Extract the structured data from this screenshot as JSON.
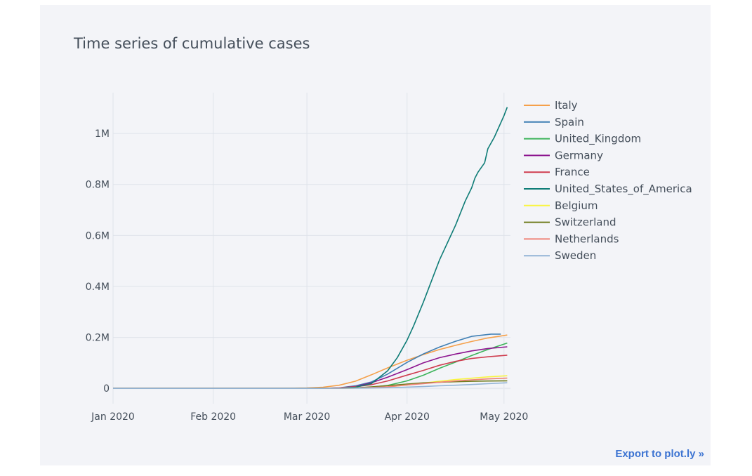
{
  "export_link_label": "Export to plot.ly »",
  "chart_data": {
    "type": "line",
    "title": "Time series of cumulative cases",
    "xlabel": "",
    "ylabel": "",
    "x_axis": {
      "type": "date",
      "range": [
        "2020-01-01",
        "2020-05-03"
      ],
      "ticks": [
        {
          "value": "2020-01-01",
          "label": "Jan 2020"
        },
        {
          "value": "2020-02-01",
          "label": "Feb 2020"
        },
        {
          "value": "2020-03-01",
          "label": "Mar 2020"
        },
        {
          "value": "2020-04-01",
          "label": "Apr 2020"
        },
        {
          "value": "2020-05-01",
          "label": "May 2020"
        }
      ]
    },
    "y_axis": {
      "range": [
        -60000,
        1160000
      ],
      "ticks": [
        {
          "value": 0,
          "label": "0"
        },
        {
          "value": 200000,
          "label": "0.2M"
        },
        {
          "value": 400000,
          "label": "0.4M"
        },
        {
          "value": 600000,
          "label": "0.6M"
        },
        {
          "value": 800000,
          "label": "0.8M"
        },
        {
          "value": 1000000,
          "label": "1M"
        }
      ]
    },
    "grid": true,
    "legend_position": "top-right",
    "series": [
      {
        "name": "Italy",
        "color": "#f5a04a",
        "points": [
          [
            "2020-01-01",
            0
          ],
          [
            "2020-02-20",
            0
          ],
          [
            "2020-03-01",
            1700
          ],
          [
            "2020-03-06",
            4600
          ],
          [
            "2020-03-11",
            12500
          ],
          [
            "2020-03-16",
            28000
          ],
          [
            "2020-03-21",
            53600
          ],
          [
            "2020-03-26",
            80500
          ],
          [
            "2020-04-01",
            110600
          ],
          [
            "2020-04-06",
            132500
          ],
          [
            "2020-04-11",
            152300
          ],
          [
            "2020-04-16",
            168900
          ],
          [
            "2020-04-21",
            183900
          ],
          [
            "2020-04-26",
            197700
          ],
          [
            "2020-05-02",
            209300
          ]
        ]
      },
      {
        "name": "Spain",
        "color": "#3f7fb4",
        "points": [
          [
            "2020-01-01",
            0
          ],
          [
            "2020-03-01",
            80
          ],
          [
            "2020-03-06",
            400
          ],
          [
            "2020-03-11",
            2300
          ],
          [
            "2020-03-16",
            9900
          ],
          [
            "2020-03-21",
            25500
          ],
          [
            "2020-03-26",
            56200
          ],
          [
            "2020-04-01",
            102000
          ],
          [
            "2020-04-06",
            135000
          ],
          [
            "2020-04-11",
            161900
          ],
          [
            "2020-04-16",
            184900
          ],
          [
            "2020-04-21",
            204200
          ],
          [
            "2020-04-27",
            213000
          ],
          [
            "2020-04-30",
            213000
          ]
        ]
      },
      {
        "name": "United_Kingdom",
        "color": "#3cb35a",
        "points": [
          [
            "2020-01-01",
            0
          ],
          [
            "2020-03-01",
            36
          ],
          [
            "2020-03-11",
            460
          ],
          [
            "2020-03-16",
            1500
          ],
          [
            "2020-03-21",
            5000
          ],
          [
            "2020-03-26",
            11700
          ],
          [
            "2020-04-01",
            29500
          ],
          [
            "2020-04-06",
            51600
          ],
          [
            "2020-04-11",
            78900
          ],
          [
            "2020-04-16",
            103000
          ],
          [
            "2020-04-21",
            129000
          ],
          [
            "2020-04-26",
            152800
          ],
          [
            "2020-05-02",
            178000
          ]
        ]
      },
      {
        "name": "Germany",
        "color": "#8d158f",
        "points": [
          [
            "2020-01-01",
            0
          ],
          [
            "2020-01-28",
            4
          ],
          [
            "2020-03-01",
            130
          ],
          [
            "2020-03-06",
            670
          ],
          [
            "2020-03-11",
            1900
          ],
          [
            "2020-03-16",
            7300
          ],
          [
            "2020-03-21",
            22400
          ],
          [
            "2020-03-26",
            43900
          ],
          [
            "2020-04-01",
            73500
          ],
          [
            "2020-04-06",
            100100
          ],
          [
            "2020-04-11",
            120500
          ],
          [
            "2020-04-16",
            134800
          ],
          [
            "2020-04-21",
            147000
          ],
          [
            "2020-04-26",
            156500
          ],
          [
            "2020-05-02",
            163000
          ]
        ]
      },
      {
        "name": "France",
        "color": "#cf3d4f",
        "points": [
          [
            "2020-01-01",
            0
          ],
          [
            "2020-01-25",
            3
          ],
          [
            "2020-03-01",
            130
          ],
          [
            "2020-03-06",
            610
          ],
          [
            "2020-03-11",
            2300
          ],
          [
            "2020-03-16",
            6600
          ],
          [
            "2020-03-21",
            14500
          ],
          [
            "2020-03-26",
            29200
          ],
          [
            "2020-04-01",
            52100
          ],
          [
            "2020-04-06",
            70500
          ],
          [
            "2020-04-11",
            90700
          ],
          [
            "2020-04-16",
            106200
          ],
          [
            "2020-04-21",
            117300
          ],
          [
            "2020-04-26",
            124100
          ],
          [
            "2020-05-02",
            130200
          ]
        ]
      },
      {
        "name": "United_States_of_America",
        "color": "#0e7c76",
        "points": [
          [
            "2020-01-01",
            0
          ],
          [
            "2020-02-21",
            15
          ],
          [
            "2020-03-01",
            75
          ],
          [
            "2020-03-06",
            230
          ],
          [
            "2020-03-11",
            1000
          ],
          [
            "2020-03-16",
            4600
          ],
          [
            "2020-03-21",
            19100
          ],
          [
            "2020-03-26",
            69200
          ],
          [
            "2020-03-29",
            121000
          ],
          [
            "2020-04-01",
            189000
          ],
          [
            "2020-04-03",
            245000
          ],
          [
            "2020-04-06",
            337000
          ],
          [
            "2020-04-11",
            503000
          ],
          [
            "2020-04-16",
            640000
          ],
          [
            "2020-04-19",
            735000
          ],
          [
            "2020-04-21",
            787000
          ],
          [
            "2020-04-22",
            825000
          ],
          [
            "2020-04-23",
            849000
          ],
          [
            "2020-04-25",
            885000
          ],
          [
            "2020-04-26",
            940000
          ],
          [
            "2020-04-28",
            985000
          ],
          [
            "2020-05-01",
            1070000
          ],
          [
            "2020-05-02",
            1103000
          ]
        ]
      },
      {
        "name": "Belgium",
        "color": "#f9f540",
        "points": [
          [
            "2020-01-01",
            0
          ],
          [
            "2020-03-06",
            170
          ],
          [
            "2020-03-11",
            310
          ],
          [
            "2020-03-16",
            1240
          ],
          [
            "2020-03-21",
            2800
          ],
          [
            "2020-03-26",
            6200
          ],
          [
            "2020-04-01",
            13000
          ],
          [
            "2020-04-06",
            20800
          ],
          [
            "2020-04-11",
            28000
          ],
          [
            "2020-04-16",
            34800
          ],
          [
            "2020-04-21",
            40000
          ],
          [
            "2020-04-26",
            45300
          ],
          [
            "2020-05-02",
            49500
          ]
        ]
      },
      {
        "name": "Switzerland",
        "color": "#6f7c1d",
        "points": [
          [
            "2020-01-01",
            0
          ],
          [
            "2020-03-06",
            210
          ],
          [
            "2020-03-11",
            650
          ],
          [
            "2020-03-16",
            2200
          ],
          [
            "2020-03-21",
            6100
          ],
          [
            "2020-03-26",
            10900
          ],
          [
            "2020-04-01",
            17100
          ],
          [
            "2020-04-06",
            21700
          ],
          [
            "2020-04-11",
            24300
          ],
          [
            "2020-04-16",
            26300
          ],
          [
            "2020-04-21",
            27900
          ],
          [
            "2020-04-26",
            28900
          ],
          [
            "2020-05-02",
            29700
          ]
        ]
      },
      {
        "name": "Netherlands",
        "color": "#ef8377",
        "points": [
          [
            "2020-01-01",
            0
          ],
          [
            "2020-03-06",
            130
          ],
          [
            "2020-03-11",
            500
          ],
          [
            "2020-03-16",
            1400
          ],
          [
            "2020-03-21",
            3600
          ],
          [
            "2020-03-26",
            6400
          ],
          [
            "2020-04-01",
            13600
          ],
          [
            "2020-04-06",
            18800
          ],
          [
            "2020-04-11",
            24400
          ],
          [
            "2020-04-16",
            29200
          ],
          [
            "2020-04-21",
            33400
          ],
          [
            "2020-04-26",
            37200
          ],
          [
            "2020-05-02",
            40200
          ]
        ]
      },
      {
        "name": "Sweden",
        "color": "#93b4d6",
        "points": [
          [
            "2020-01-01",
            0
          ],
          [
            "2020-03-06",
            140
          ],
          [
            "2020-03-11",
            500
          ],
          [
            "2020-03-16",
            1100
          ],
          [
            "2020-03-21",
            1800
          ],
          [
            "2020-03-26",
            2800
          ],
          [
            "2020-04-01",
            4900
          ],
          [
            "2020-04-06",
            7200
          ],
          [
            "2020-04-11",
            10100
          ],
          [
            "2020-04-16",
            12500
          ],
          [
            "2020-04-21",
            15300
          ],
          [
            "2020-04-26",
            18600
          ],
          [
            "2020-05-02",
            22100
          ]
        ]
      }
    ]
  }
}
